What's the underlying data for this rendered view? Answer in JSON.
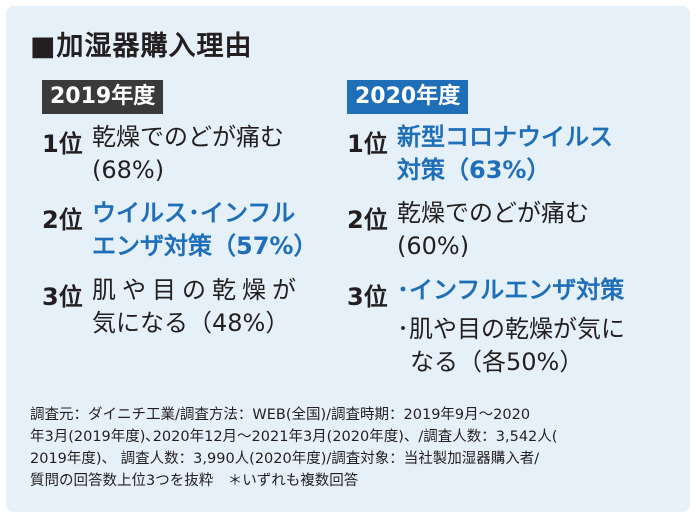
{
  "title": "■加湿器購入理由",
  "y2019": {
    "label": "2019年度",
    "items": [
      {
        "rank": "1位",
        "lines": [
          "乾燥でのどが痛む",
          "(68%)"
        ]
      },
      {
        "rank": "2位",
        "lines": [
          "ウイルス･インフル",
          "エンザ対策（57%）"
        ]
      },
      {
        "rank": "3位",
        "lines": [
          "肌や目の乾燥が",
          "気になる（48%）"
        ]
      }
    ]
  },
  "y2020": {
    "label": "2020年度",
    "items": [
      {
        "rank": "1位",
        "lines": [
          "新型コロナウイルス",
          "対策（63%）"
        ]
      },
      {
        "rank": "2位",
        "lines": [
          "乾燥でのどが痛む",
          "(60%)"
        ]
      },
      {
        "rank": "3位",
        "lines": [
          "･インフルエンザ対策",
          "･肌や目の乾燥が気に",
          "なる（各50%）"
        ]
      }
    ]
  },
  "footnote": [
    "調査元：ダイニチ工業/調査方法：WEB(全国)/調査時期：2019年9月～2020",
    "年3月(2019年度)､2020年12月～2021年3月(2020年度)、/調査人数：3,542人(",
    "2019年度)、 調査人数：3,990人(2020年度)/調査対象：当社製加湿器購入者/",
    "質問の回答数上位3つを抜粋　＊いずれも複数回答"
  ],
  "colors": {
    "accent": "#1f6fb8",
    "dark_tag": "#3a3a3a",
    "panel": "#e6f0f8"
  }
}
